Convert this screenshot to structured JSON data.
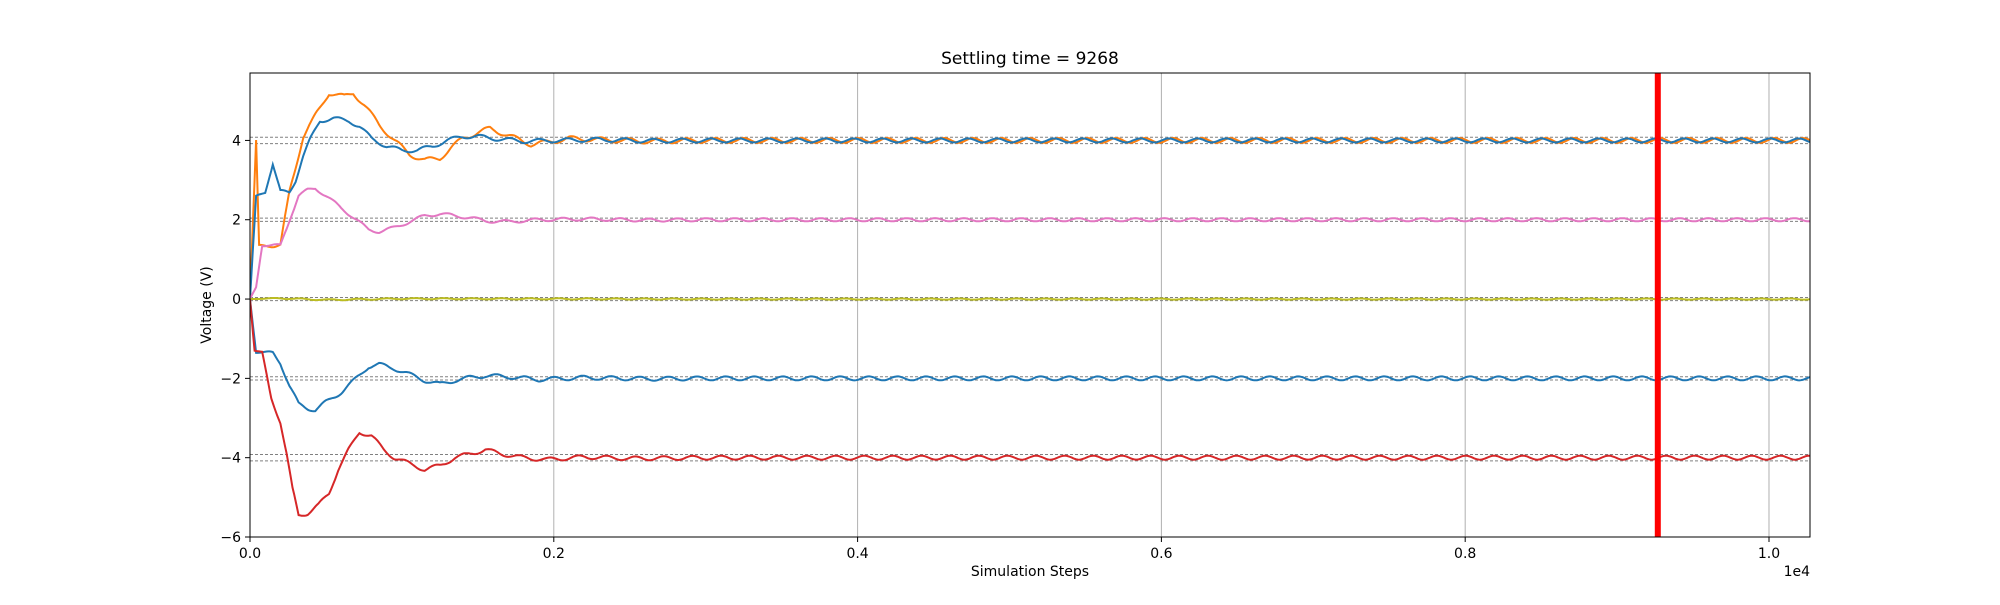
{
  "chart_data": {
    "type": "line",
    "title": "Settling time = 9268",
    "xlabel": "Simulation Steps",
    "ylabel": "Voltage (V)",
    "x_offset_text": "1e4",
    "xlim": [
      0,
      10270
    ],
    "ylim": [
      -6,
      5.7
    ],
    "grid": "x-only",
    "xticks": [
      {
        "value": 0,
        "label": "0.0"
      },
      {
        "value": 2000,
        "label": "0.2"
      },
      {
        "value": 4000,
        "label": "0.4"
      },
      {
        "value": 6000,
        "label": "0.6"
      },
      {
        "value": 8000,
        "label": "0.8"
      },
      {
        "value": 10000,
        "label": "1.0"
      }
    ],
    "yticks": [
      {
        "value": -6,
        "label": "−6"
      },
      {
        "value": -4,
        "label": "−4"
      },
      {
        "value": -2,
        "label": "−2"
      },
      {
        "value": 0,
        "label": "0"
      },
      {
        "value": 2,
        "label": "2"
      },
      {
        "value": 4,
        "label": "4"
      }
    ],
    "reference_lines": [
      4.08,
      3.92,
      2.04,
      1.96,
      0.04,
      -0.04,
      -1.96,
      -2.04,
      -3.92,
      -4.08
    ],
    "settling_marker": {
      "x": 9268,
      "color": "#ff0000"
    },
    "series": [
      {
        "color": "#ff7f0e",
        "target": 4,
        "ripple": 0.06,
        "points": [
          [
            0,
            0
          ],
          [
            40,
            4.0
          ],
          [
            60,
            1.35
          ],
          [
            150,
            1.35
          ],
          [
            200,
            1.35
          ],
          [
            260,
            2.7
          ],
          [
            350,
            4.1
          ],
          [
            450,
            4.75
          ],
          [
            520,
            5.2
          ],
          [
            620,
            5.1
          ],
          [
            680,
            5.2
          ],
          [
            750,
            4.9
          ],
          [
            850,
            4.4
          ],
          [
            950,
            4.0
          ],
          [
            1050,
            3.65
          ],
          [
            1150,
            3.5
          ],
          [
            1250,
            3.55
          ],
          [
            1320,
            3.8
          ],
          [
            1400,
            4.05
          ],
          [
            1500,
            4.2
          ],
          [
            1580,
            4.3
          ],
          [
            1650,
            4.2
          ],
          [
            1750,
            4.05
          ],
          [
            1850,
            3.9
          ],
          [
            1950,
            3.95
          ],
          [
            2100,
            4.05
          ],
          [
            2300,
            4.02
          ],
          [
            2600,
            3.98
          ],
          [
            3000,
            4.0
          ]
        ]
      },
      {
        "color": "#1f77b4",
        "target": 4,
        "ripple": 0.05,
        "points": [
          [
            0,
            0
          ],
          [
            40,
            2.6
          ],
          [
            100,
            2.7
          ],
          [
            150,
            3.4
          ],
          [
            200,
            2.7
          ],
          [
            260,
            2.7
          ],
          [
            300,
            3.0
          ],
          [
            350,
            3.6
          ],
          [
            400,
            4.05
          ],
          [
            460,
            4.5
          ],
          [
            550,
            4.55
          ],
          [
            650,
            4.5
          ],
          [
            720,
            4.35
          ],
          [
            800,
            4.05
          ],
          [
            900,
            3.85
          ],
          [
            1000,
            3.75
          ],
          [
            1100,
            3.75
          ],
          [
            1200,
            3.85
          ],
          [
            1300,
            4.0
          ],
          [
            1400,
            4.1
          ],
          [
            1500,
            4.1
          ],
          [
            1600,
            4.05
          ],
          [
            1800,
            3.98
          ],
          [
            2000,
            4.0
          ],
          [
            2300,
            4.02
          ],
          [
            2600,
            3.99
          ],
          [
            3000,
            4.0
          ]
        ]
      },
      {
        "color": "#e377c2",
        "target": 2,
        "ripple": 0.04,
        "points": [
          [
            0,
            0
          ],
          [
            40,
            0.3
          ],
          [
            80,
            1.35
          ],
          [
            150,
            1.35
          ],
          [
            200,
            1.35
          ],
          [
            260,
            2.0
          ],
          [
            320,
            2.6
          ],
          [
            380,
            2.75
          ],
          [
            430,
            2.8
          ],
          [
            500,
            2.6
          ],
          [
            600,
            2.3
          ],
          [
            700,
            2.0
          ],
          [
            780,
            1.75
          ],
          [
            850,
            1.7
          ],
          [
            950,
            1.8
          ],
          [
            1050,
            1.95
          ],
          [
            1150,
            2.1
          ],
          [
            1250,
            2.15
          ],
          [
            1350,
            2.1
          ],
          [
            1450,
            2.05
          ],
          [
            1550,
            1.97
          ],
          [
            1700,
            1.95
          ],
          [
            1900,
            2.0
          ],
          [
            2200,
            2.02
          ],
          [
            2600,
            1.99
          ],
          [
            3000,
            2.0
          ]
        ]
      },
      {
        "color": "#bcbd22",
        "target": 0,
        "ripple": 0.015,
        "points": [
          [
            0,
            0
          ],
          [
            200,
            0.02
          ],
          [
            500,
            -0.02
          ],
          [
            1000,
            0.01
          ],
          [
            3000,
            0
          ]
        ]
      },
      {
        "color": "#1f77b4",
        "target": -2,
        "ripple": 0.05,
        "points": [
          [
            0,
            0
          ],
          [
            40,
            -1.35
          ],
          [
            100,
            -1.35
          ],
          [
            150,
            -1.35
          ],
          [
            200,
            -1.6
          ],
          [
            260,
            -2.2
          ],
          [
            320,
            -2.65
          ],
          [
            380,
            -2.75
          ],
          [
            430,
            -2.8
          ],
          [
            500,
            -2.6
          ],
          [
            600,
            -2.35
          ],
          [
            700,
            -2.0
          ],
          [
            780,
            -1.7
          ],
          [
            850,
            -1.65
          ],
          [
            950,
            -1.75
          ],
          [
            1050,
            -1.9
          ],
          [
            1150,
            -2.05
          ],
          [
            1250,
            -2.15
          ],
          [
            1350,
            -2.05
          ],
          [
            1450,
            -1.98
          ],
          [
            1550,
            -1.93
          ],
          [
            1700,
            -1.96
          ],
          [
            1900,
            -2.03
          ],
          [
            2200,
            -1.98
          ],
          [
            2600,
            -2.01
          ],
          [
            3000,
            -2.0
          ]
        ]
      },
      {
        "color": "#d62728",
        "target": -4,
        "ripple": 0.05,
        "points": [
          [
            0,
            0
          ],
          [
            30,
            -1.3
          ],
          [
            80,
            -1.35
          ],
          [
            140,
            -2.5
          ],
          [
            200,
            -3.1
          ],
          [
            240,
            -3.9
          ],
          [
            280,
            -4.8
          ],
          [
            320,
            -5.45
          ],
          [
            380,
            -5.4
          ],
          [
            450,
            -5.2
          ],
          [
            520,
            -4.9
          ],
          [
            580,
            -4.3
          ],
          [
            650,
            -3.8
          ],
          [
            720,
            -3.35
          ],
          [
            800,
            -3.45
          ],
          [
            880,
            -3.8
          ],
          [
            950,
            -4.0
          ],
          [
            1050,
            -4.15
          ],
          [
            1150,
            -4.3
          ],
          [
            1250,
            -4.2
          ],
          [
            1350,
            -4.0
          ],
          [
            1450,
            -3.9
          ],
          [
            1550,
            -3.8
          ],
          [
            1650,
            -3.9
          ],
          [
            1800,
            -4.0
          ],
          [
            1950,
            -4.05
          ],
          [
            2200,
            -3.98
          ],
          [
            2500,
            -4.02
          ],
          [
            3000,
            -4.0
          ]
        ]
      }
    ]
  }
}
